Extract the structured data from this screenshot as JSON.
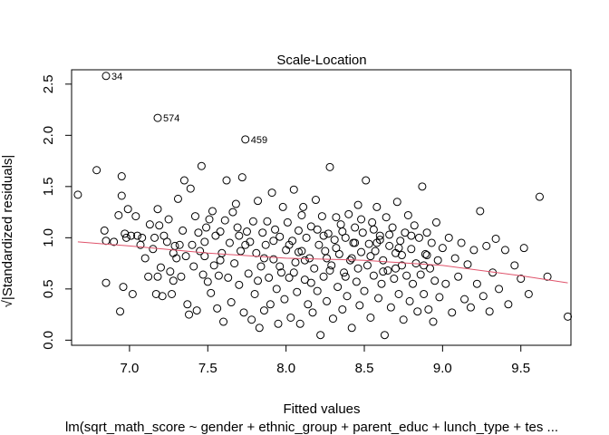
{
  "chart_data": {
    "type": "scatter",
    "title": "Scale-Location",
    "xlabel": "Fitted values",
    "ylabel": "√|Standardized residuals|",
    "subtitle": "lm(sqrt_math_score ~ gender + ethnic_group + parent_educ + lunch_type + tes ...",
    "xlim": [
      6.63,
      9.82
    ],
    "ylim": [
      -0.05,
      2.64
    ],
    "x_ticks": [
      7.0,
      7.5,
      8.0,
      8.5,
      9.0,
      9.5
    ],
    "x_tick_labels": [
      "7.0",
      "7.5",
      "8.0",
      "8.5",
      "9.0",
      "9.5"
    ],
    "y_ticks": [
      0.0,
      0.5,
      1.0,
      1.5,
      2.0,
      2.5
    ],
    "y_tick_labels": [
      "0.0",
      "0.5",
      "1.0",
      "1.5",
      "2.0",
      "2.5"
    ],
    "grid": false,
    "point_style": "open-circle",
    "smooth_line": {
      "color": "#df536b",
      "x": [
        6.67,
        7.0,
        7.5,
        8.0,
        8.5,
        9.0,
        9.5,
        9.8
      ],
      "y": [
        0.96,
        0.92,
        0.85,
        0.8,
        0.78,
        0.73,
        0.63,
        0.56
      ]
    },
    "labeled_points": [
      {
        "label": "34",
        "x": 6.85,
        "y": 2.58
      },
      {
        "label": "574",
        "x": 7.18,
        "y": 2.17
      },
      {
        "label": "459",
        "x": 7.74,
        "y": 1.96
      }
    ],
    "points": [
      [
        6.67,
        1.42
      ],
      [
        6.79,
        1.66
      ],
      [
        6.84,
        1.07
      ],
      [
        6.85,
        0.97
      ],
      [
        6.85,
        0.56
      ],
      [
        6.9,
        0.96
      ],
      [
        6.93,
        1.22
      ],
      [
        6.94,
        0.28
      ],
      [
        6.95,
        1.6
      ],
      [
        6.95,
        1.41
      ],
      [
        6.96,
        0.52
      ],
      [
        6.97,
        1.04
      ],
      [
        6.98,
        1.0
      ],
      [
        6.99,
        1.28
      ],
      [
        7.01,
        1.02
      ],
      [
        7.02,
        0.45
      ],
      [
        7.04,
        1.21
      ],
      [
        7.05,
        1.02
      ],
      [
        7.07,
        0.93
      ],
      [
        7.08,
        1.0
      ],
      [
        7.1,
        0.8
      ],
      [
        7.12,
        0.62
      ],
      [
        7.13,
        1.13
      ],
      [
        7.15,
        0.89
      ],
      [
        7.16,
        1.0
      ],
      [
        7.17,
        0.45
      ],
      [
        7.18,
        1.28
      ],
      [
        7.18,
        0.62
      ],
      [
        7.19,
        1.12
      ],
      [
        7.2,
        0.71
      ],
      [
        7.21,
        0.43
      ],
      [
        7.22,
        1.02
      ],
      [
        7.24,
        0.96
      ],
      [
        7.25,
        1.18
      ],
      [
        7.26,
        0.67
      ],
      [
        7.27,
        0.45
      ],
      [
        7.28,
        0.58
      ],
      [
        7.29,
        0.92
      ],
      [
        7.3,
        0.8
      ],
      [
        7.31,
        1.38
      ],
      [
        7.32,
        0.93
      ],
      [
        7.33,
        0.62
      ],
      [
        7.34,
        1.07
      ],
      [
        7.35,
        1.56
      ],
      [
        7.36,
        0.82
      ],
      [
        7.37,
        0.35
      ],
      [
        7.38,
        0.25
      ],
      [
        7.39,
        1.48
      ],
      [
        7.4,
        0.93
      ],
      [
        7.41,
        0.72
      ],
      [
        7.42,
        1.21
      ],
      [
        7.43,
        0.29
      ],
      [
        7.44,
        1.05
      ],
      [
        7.45,
        0.87
      ],
      [
        7.46,
        1.7
      ],
      [
        7.47,
        0.64
      ],
      [
        7.48,
        0.96
      ],
      [
        7.49,
        1.1
      ],
      [
        7.5,
        0.57
      ],
      [
        7.51,
        1.18
      ],
      [
        7.52,
        0.46
      ],
      [
        7.53,
        1.26
      ],
      [
        7.54,
        0.73
      ],
      [
        7.55,
        1.02
      ],
      [
        7.56,
        0.31
      ],
      [
        7.57,
        0.63
      ],
      [
        7.58,
        1.06
      ],
      [
        7.59,
        0.85
      ],
      [
        7.6,
        0.18
      ],
      [
        7.61,
        1.17
      ],
      [
        7.62,
        1.56
      ],
      [
        7.63,
        0.61
      ],
      [
        7.64,
        0.95
      ],
      [
        7.65,
        0.37
      ],
      [
        7.66,
        1.25
      ],
      [
        7.67,
        0.75
      ],
      [
        7.68,
        1.33
      ],
      [
        7.69,
        1.1
      ],
      [
        7.7,
        0.54
      ],
      [
        7.71,
        0.87
      ],
      [
        7.72,
        1.59
      ],
      [
        7.73,
        0.27
      ],
      [
        7.75,
        1.06
      ],
      [
        7.76,
        0.65
      ],
      [
        7.77,
        0.96
      ],
      [
        7.78,
        0.2
      ],
      [
        7.79,
        1.16
      ],
      [
        7.8,
        0.45
      ],
      [
        7.81,
        0.85
      ],
      [
        7.82,
        1.36
      ],
      [
        7.83,
        0.12
      ],
      [
        7.84,
        0.72
      ],
      [
        7.85,
        1.05
      ],
      [
        7.86,
        0.29
      ],
      [
        7.87,
        0.93
      ],
      [
        7.88,
        1.16
      ],
      [
        7.89,
        0.61
      ],
      [
        7.9,
        0.35
      ],
      [
        7.91,
        1.44
      ],
      [
        7.92,
        0.79
      ],
      [
        7.93,
        1.08
      ],
      [
        7.94,
        0.5
      ],
      [
        7.95,
        0.16
      ],
      [
        7.96,
        1.01
      ],
      [
        7.97,
        0.66
      ],
      [
        7.98,
        1.3
      ],
      [
        7.99,
        0.4
      ],
      [
        8.0,
        0.88
      ],
      [
        8.01,
        1.15
      ],
      [
        8.02,
        0.61
      ],
      [
        8.03,
        0.22
      ],
      [
        8.04,
        0.97
      ],
      [
        8.05,
        1.47
      ],
      [
        8.06,
        0.76
      ],
      [
        8.07,
        0.47
      ],
      [
        8.08,
        1.07
      ],
      [
        8.09,
        0.16
      ],
      [
        8.1,
        0.87
      ],
      [
        8.11,
        1.3
      ],
      [
        8.12,
        0.59
      ],
      [
        8.13,
        1.0
      ],
      [
        8.14,
        0.35
      ],
      [
        8.15,
        0.8
      ],
      [
        8.16,
        1.11
      ],
      [
        8.17,
        0.27
      ],
      [
        8.18,
        0.7
      ],
      [
        8.19,
        1.37
      ],
      [
        8.2,
        0.48
      ],
      [
        8.21,
        0.93
      ],
      [
        8.22,
        0.05
      ],
      [
        8.23,
        1.21
      ],
      [
        8.24,
        0.62
      ],
      [
        8.25,
        0.87
      ],
      [
        8.26,
        0.38
      ],
      [
        8.27,
        1.04
      ],
      [
        8.28,
        1.69
      ],
      [
        8.29,
        0.73
      ],
      [
        8.3,
        0.21
      ],
      [
        8.31,
        0.98
      ],
      [
        8.32,
        1.2
      ],
      [
        8.33,
        0.52
      ],
      [
        8.34,
        0.84
      ],
      [
        8.35,
        1.13
      ],
      [
        8.36,
        0.3
      ],
      [
        8.37,
        0.66
      ],
      [
        8.38,
        1.0
      ],
      [
        8.39,
        0.43
      ],
      [
        8.4,
        1.23
      ],
      [
        8.41,
        0.78
      ],
      [
        8.42,
        0.12
      ],
      [
        8.43,
        0.95
      ],
      [
        8.44,
        1.1
      ],
      [
        8.45,
        0.57
      ],
      [
        8.46,
        1.32
      ],
      [
        8.47,
        0.34
      ],
      [
        8.48,
        0.86
      ],
      [
        8.49,
        1.05
      ],
      [
        8.5,
        0.48
      ],
      [
        8.51,
        1.56
      ],
      [
        8.52,
        0.73
      ],
      [
        8.53,
        0.94
      ],
      [
        8.54,
        0.22
      ],
      [
        8.55,
        1.15
      ],
      [
        8.56,
        0.63
      ],
      [
        8.57,
        0.87
      ],
      [
        8.58,
        1.3
      ],
      [
        8.59,
        0.41
      ],
      [
        8.6,
        1.02
      ],
      [
        8.61,
        0.55
      ],
      [
        8.62,
        0.78
      ],
      [
        8.63,
        0.05
      ],
      [
        8.64,
        1.2
      ],
      [
        8.65,
        0.68
      ],
      [
        8.66,
        0.92
      ],
      [
        8.67,
        0.32
      ],
      [
        8.68,
        1.1
      ],
      [
        8.69,
        0.6
      ],
      [
        8.7,
        0.85
      ],
      [
        8.71,
        1.35
      ],
      [
        8.72,
        0.45
      ],
      [
        8.73,
        0.97
      ],
      [
        8.74,
        0.73
      ],
      [
        8.75,
        0.2
      ],
      [
        8.76,
        1.05
      ],
      [
        8.77,
        0.63
      ],
      [
        8.78,
        1.22
      ],
      [
        8.79,
        0.38
      ],
      [
        8.8,
        0.89
      ],
      [
        8.81,
        0.55
      ],
      [
        8.82,
        1.12
      ],
      [
        8.83,
        0.75
      ],
      [
        8.84,
        0.28
      ],
      [
        8.85,
        1.0
      ],
      [
        8.86,
        0.64
      ],
      [
        8.87,
        1.5
      ],
      [
        8.88,
        0.45
      ],
      [
        8.89,
        0.84
      ],
      [
        8.9,
        1.05
      ],
      [
        8.91,
        0.3
      ],
      [
        8.92,
        0.7
      ],
      [
        8.93,
        0.95
      ],
      [
        8.94,
        0.18
      ],
      [
        8.95,
        0.58
      ],
      [
        8.96,
        1.15
      ],
      [
        8.97,
        0.78
      ],
      [
        8.98,
        0.42
      ],
      [
        9.0,
        0.9
      ],
      [
        9.02,
        0.55
      ],
      [
        9.04,
        1.0
      ],
      [
        9.06,
        0.27
      ],
      [
        9.08,
        0.8
      ],
      [
        9.1,
        0.62
      ],
      [
        9.12,
        0.95
      ],
      [
        9.14,
        0.4
      ],
      [
        9.16,
        0.74
      ],
      [
        9.18,
        0.32
      ],
      [
        9.2,
        0.88
      ],
      [
        9.22,
        0.55
      ],
      [
        9.24,
        1.26
      ],
      [
        9.26,
        0.43
      ],
      [
        9.28,
        0.92
      ],
      [
        9.3,
        0.28
      ],
      [
        9.32,
        0.66
      ],
      [
        9.34,
        0.99
      ],
      [
        9.36,
        0.5
      ],
      [
        9.4,
        0.88
      ],
      [
        9.42,
        0.35
      ],
      [
        9.46,
        0.73
      ],
      [
        9.5,
        0.6
      ],
      [
        9.52,
        0.9
      ],
      [
        9.55,
        0.45
      ],
      [
        9.62,
        1.4
      ],
      [
        9.67,
        0.62
      ],
      [
        9.8,
        0.23
      ],
      [
        7.28,
        0.85
      ],
      [
        7.74,
        0.93
      ],
      [
        7.96,
        0.72
      ],
      [
        8.12,
        0.78
      ],
      [
        8.32,
        0.9
      ],
      [
        8.46,
        0.7
      ],
      [
        8.58,
        0.95
      ],
      [
        8.74,
        0.83
      ],
      [
        8.88,
        0.73
      ],
      [
        8.05,
        0.66
      ],
      [
        8.2,
        1.08
      ],
      [
        8.38,
        0.62
      ],
      [
        8.6,
        0.98
      ],
      [
        7.86,
        0.8
      ],
      [
        7.58,
        0.78
      ],
      [
        8.26,
        0.8
      ],
      [
        8.44,
        0.95
      ],
      [
        8.66,
        1.03
      ],
      [
        8.02,
        0.93
      ],
      [
        8.16,
        0.56
      ],
      [
        8.36,
        1.06
      ],
      [
        8.54,
        0.82
      ],
      [
        8.7,
        0.7
      ],
      [
        7.92,
        0.97
      ],
      [
        7.7,
        1.02
      ],
      [
        8.1,
        1.22
      ],
      [
        8.28,
        0.68
      ],
      [
        8.48,
        1.18
      ],
      [
        8.62,
        0.67
      ],
      [
        8.8,
        1.02
      ],
      [
        7.48,
        0.82
      ],
      [
        7.82,
        0.58
      ],
      [
        8.08,
        0.86
      ],
      [
        8.24,
        1.02
      ],
      [
        8.42,
        0.8
      ],
      [
        8.56,
        1.08
      ],
      [
        8.72,
        0.9
      ],
      [
        8.9,
        0.83
      ]
    ]
  }
}
